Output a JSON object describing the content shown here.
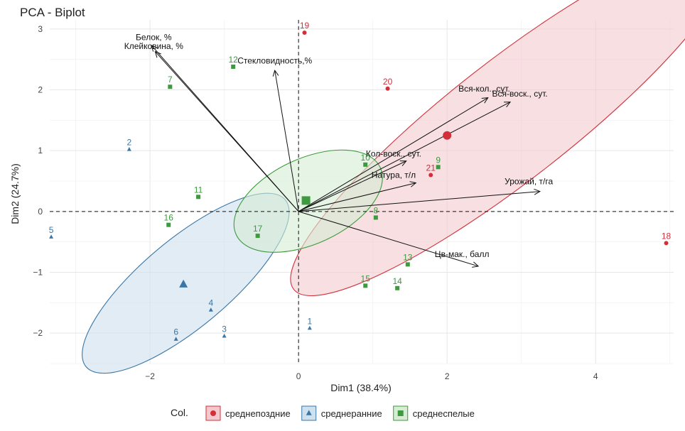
{
  "chart_data": {
    "type": "scatter",
    "title": "PCA - Biplot",
    "xlabel": "Dim1 (38.4%)",
    "ylabel": "Dim2 (24.7%)",
    "xlim": [
      -3.35,
      5.05
    ],
    "ylim": [
      -2.5,
      3.15
    ],
    "xticks": [
      -2,
      0,
      2,
      4
    ],
    "yticks": [
      -2,
      -1,
      0,
      1,
      2,
      3
    ],
    "grid": true,
    "legend_title": "Col.",
    "legend_position": "bottom",
    "groups": [
      {
        "name": "среднепоздние",
        "color": "#d32f3a",
        "fill": "#f4c9ce",
        "marker": "circle",
        "centroid": [
          2.0,
          1.25
        ],
        "ellipse": {
          "cx": 2.85,
          "cy": 1.5,
          "rx": 3.7,
          "ry": 0.98,
          "angle_deg": -38
        }
      },
      {
        "name": "среднеранние",
        "color": "#3a77a6",
        "fill": "#cfe0ee",
        "marker": "triangle",
        "centroid": [
          -1.55,
          -1.2
        ],
        "ellipse": {
          "cx": -1.52,
          "cy": -1.18,
          "rx": 1.75,
          "ry": 0.72,
          "angle_deg": -40
        }
      },
      {
        "name": "среднеспелые",
        "color": "#3e9a3e",
        "fill": "#d6ecd3",
        "marker": "square",
        "centroid": [
          0.1,
          0.18
        ],
        "ellipse": {
          "cx": 0.13,
          "cy": 0.17,
          "rx": 1.07,
          "ry": 0.7,
          "angle_deg": -25
        }
      }
    ],
    "points": [
      {
        "label": "1",
        "x": 0.15,
        "y": -1.92,
        "group": 1
      },
      {
        "label": "2",
        "x": -2.28,
        "y": 1.02,
        "group": 1
      },
      {
        "label": "3",
        "x": -1.0,
        "y": -2.05,
        "group": 1
      },
      {
        "label": "4",
        "x": -1.18,
        "y": -1.62,
        "group": 1
      },
      {
        "label": "5",
        "x": -3.33,
        "y": -0.42,
        "group": 1
      },
      {
        "label": "6",
        "x": -1.65,
        "y": -2.1,
        "group": 1
      },
      {
        "label": "7",
        "x": -1.73,
        "y": 2.05,
        "group": 2
      },
      {
        "label": "8",
        "x": 1.04,
        "y": -0.1,
        "group": 2
      },
      {
        "label": "9",
        "x": 1.88,
        "y": 0.73,
        "group": 2
      },
      {
        "label": "10",
        "x": 0.9,
        "y": 0.77,
        "group": 2
      },
      {
        "label": "11",
        "x": -1.35,
        "y": 0.24,
        "group": 2
      },
      {
        "label": "12",
        "x": -0.88,
        "y": 2.38,
        "group": 2
      },
      {
        "label": "13",
        "x": 1.47,
        "y": -0.87,
        "group": 2
      },
      {
        "label": "14",
        "x": 1.33,
        "y": -1.26,
        "group": 2
      },
      {
        "label": "15",
        "x": 0.9,
        "y": -1.22,
        "group": 2
      },
      {
        "label": "16",
        "x": -1.75,
        "y": -0.22,
        "group": 2
      },
      {
        "label": "17",
        "x": -0.55,
        "y": -0.4,
        "group": 2
      },
      {
        "label": "18",
        "x": 4.95,
        "y": -0.52,
        "group": 0
      },
      {
        "label": "19",
        "x": 0.08,
        "y": 2.94,
        "group": 0
      },
      {
        "label": "20",
        "x": 1.2,
        "y": 2.02,
        "group": 0
      },
      {
        "label": "21",
        "x": 1.78,
        "y": 0.6,
        "group": 0
      }
    ],
    "arrows": [
      {
        "label": "Белок, %",
        "x": -1.93,
        "y": 2.63,
        "lx": -1.95,
        "ly": 2.82
      },
      {
        "label": "Клейковина, %",
        "x": -1.98,
        "y": 2.73,
        "lx": -1.95,
        "ly": 2.67
      },
      {
        "label": "Стекловидность,%",
        "x": -0.32,
        "y": 2.32,
        "lx": -0.32,
        "ly": 2.43
      },
      {
        "label": "Вся-кол., сут.",
        "x": 2.55,
        "y": 1.87,
        "lx": 2.5,
        "ly": 1.97
      },
      {
        "label": "Вся-воск., сут.",
        "x": 2.85,
        "y": 1.8,
        "lx": 2.98,
        "ly": 1.89
      },
      {
        "label": "Кол-воск., сут.",
        "x": 1.45,
        "y": 0.83,
        "lx": 1.28,
        "ly": 0.9
      },
      {
        "label": "Натура, т/л",
        "x": 1.58,
        "y": 0.47,
        "lx": 1.28,
        "ly": 0.55
      },
      {
        "label": "Урожай, т/га",
        "x": 3.25,
        "y": 0.33,
        "lx": 3.1,
        "ly": 0.45
      },
      {
        "label": "Цв-мак., балл",
        "x": 2.42,
        "y": -0.9,
        "lx": 2.2,
        "ly": -0.75
      }
    ]
  }
}
